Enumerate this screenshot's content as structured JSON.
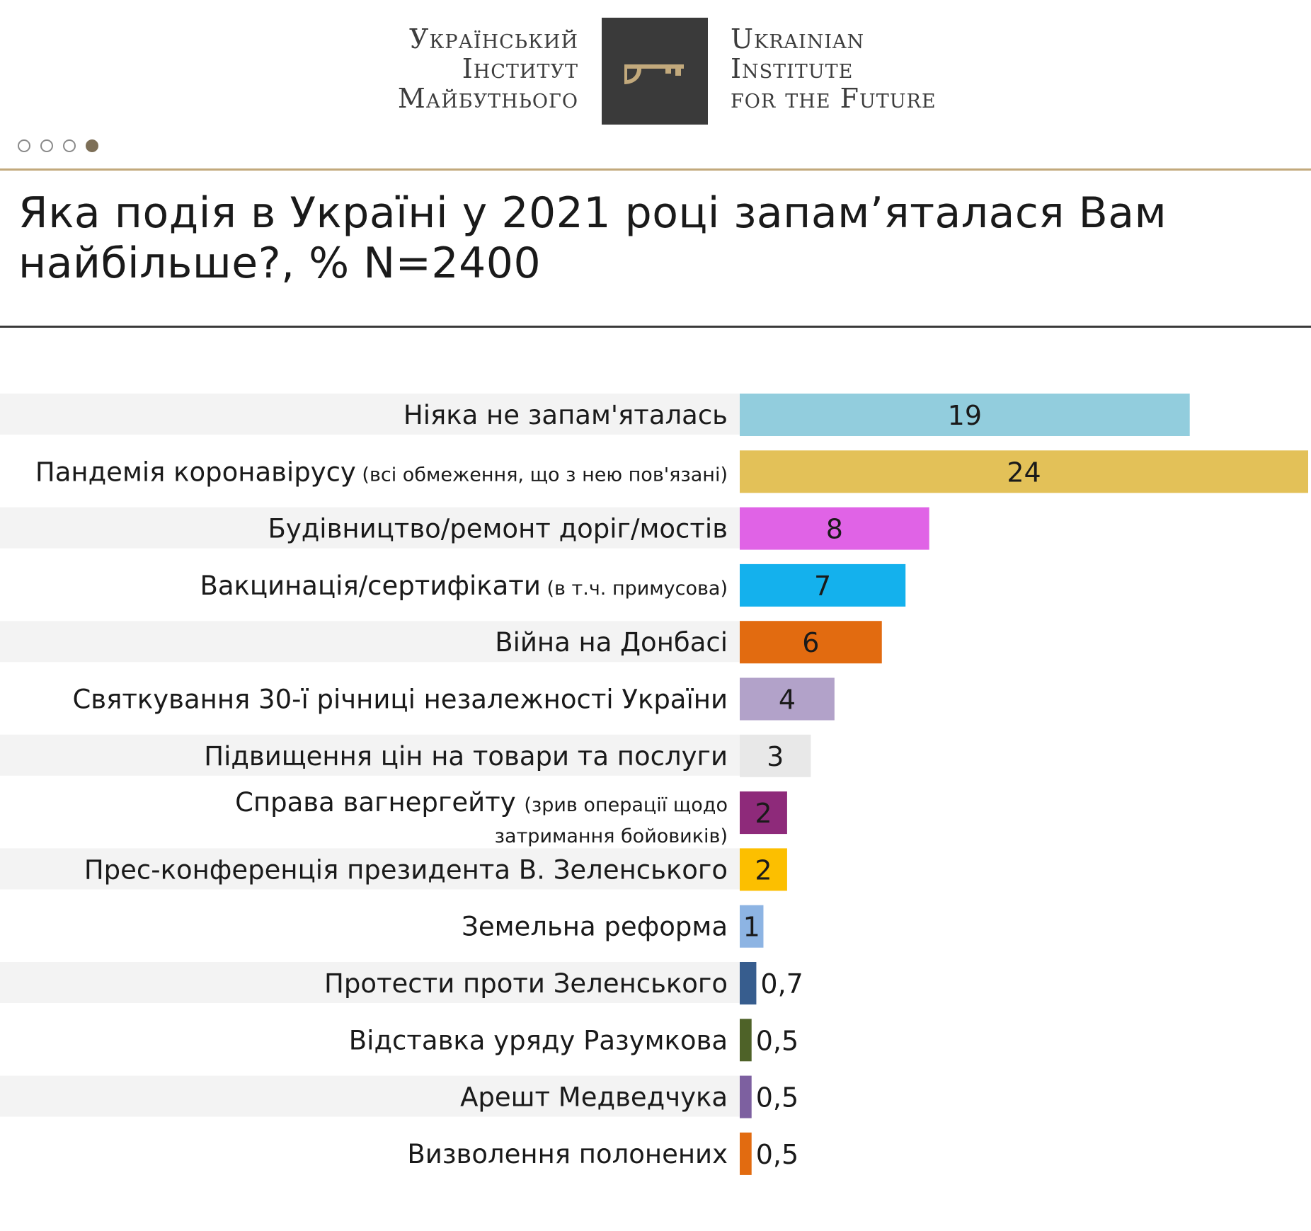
{
  "header": {
    "logo_ua": [
      "Український",
      "Інститут",
      "Майбутнього"
    ],
    "logo_en": [
      "Ukrainian",
      "Institute",
      "for the Future"
    ],
    "logo_mark": "key-icon",
    "pagination": {
      "total": 4,
      "active": 4
    },
    "colors": {
      "gold": "#c2a97c",
      "dark": "#3a3a3a"
    }
  },
  "chart_data": {
    "type": "bar",
    "orientation": "horizontal",
    "title": "Яка подія в Україні у 2021 році запам’яталася Вам найбільше?, % N=2400",
    "xlim": [
      0,
      24
    ],
    "grid": false,
    "legend": "none",
    "data_labels": true,
    "categories": [
      {
        "label": "Ніяка не запам'яталась",
        "note": ""
      },
      {
        "label": "Пандемія коронавірусу",
        "note": "(всі обмеження, що з нею пов'язані)"
      },
      {
        "label": "Будівництво/ремонт доріг/мостів",
        "note": ""
      },
      {
        "label": "Вакцинація/сертифікати",
        "note": "(в т.ч. примусова)"
      },
      {
        "label": "Війна на Донбасі",
        "note": ""
      },
      {
        "label": "Святкування 30-ї річниці незалежності України",
        "note": ""
      },
      {
        "label": "Підвищення цін на товари та послуги",
        "note": ""
      },
      {
        "label": "Справа вагнергейту",
        "note": "(зрив операції щодо затримання бойовиків)",
        "note_line1": "(зрив операції щодо",
        "note_line2": "затримання бойовиків)"
      },
      {
        "label": "Прес-конференція президента В. Зеленського",
        "note": ""
      },
      {
        "label": "Земельна реформа",
        "note": ""
      },
      {
        "label": "Протести проти Зеленського",
        "note": ""
      },
      {
        "label": "Відставка уряду Разумкова",
        "note": ""
      },
      {
        "label": "Арешт Медведчука",
        "note": ""
      },
      {
        "label": "Визволення полонених",
        "note": ""
      }
    ],
    "values": [
      19,
      24,
      8,
      7,
      6,
      4,
      3,
      2,
      2,
      1,
      0.7,
      0.5,
      0.5,
      0.5
    ],
    "value_labels": [
      "19",
      "24",
      "8",
      "7",
      "6",
      "4",
      "3",
      "2",
      "2",
      "1",
      "0,7",
      "0,5",
      "0,5",
      "0,5"
    ],
    "colors": [
      "#92cddd",
      "#e3c158",
      "#e063e6",
      "#14b1ed",
      "#e26b10",
      "#b2a2c9",
      "#e8e8e8",
      "#8e2a7a",
      "#fcbf00",
      "#8db4e3",
      "#375d8e",
      "#4e6228",
      "#7d60a0",
      "#e26b10"
    ],
    "stripe_color": "#f3f3f3"
  }
}
